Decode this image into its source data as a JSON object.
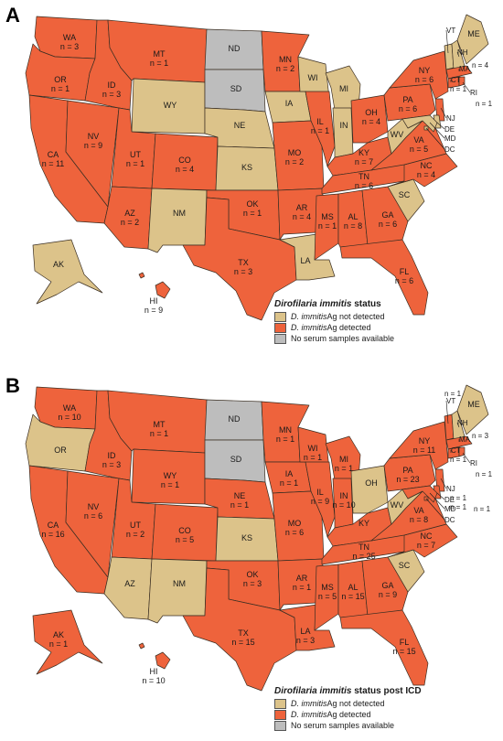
{
  "colors": {
    "not_detected": "#dcc38a",
    "detected": "#ee633c",
    "no_samples": "#bdbdbd"
  },
  "panels": [
    {
      "letter": "A",
      "legend": {
        "title_italic": "Dirofilaria immitis",
        "title_rest": " status",
        "items": [
          {
            "italic": "D. immitis",
            "rest": " Ag not detected",
            "status": "not_detected"
          },
          {
            "italic": "D. immitis",
            "rest": " Ag detected",
            "status": "detected"
          },
          {
            "italic": "",
            "rest": "No serum samples available",
            "status": "no_samples"
          }
        ]
      },
      "states": {
        "WA": {
          "s": "detected",
          "n": "n = 3"
        },
        "OR": {
          "s": "detected",
          "n": "n = 1"
        },
        "CA": {
          "s": "detected",
          "n": "n = 11"
        },
        "NV": {
          "s": "detected",
          "n": "n = 9"
        },
        "ID": {
          "s": "detected",
          "n": "n = 3"
        },
        "MT": {
          "s": "detected",
          "n": "n = 1"
        },
        "WY": {
          "s": "not_detected",
          "n": ""
        },
        "UT": {
          "s": "detected",
          "n": "n = 1"
        },
        "AZ": {
          "s": "detected",
          "n": "n = 2"
        },
        "CO": {
          "s": "detected",
          "n": "n = 4"
        },
        "NM": {
          "s": "not_detected",
          "n": ""
        },
        "ND": {
          "s": "no_samples",
          "n": ""
        },
        "SD": {
          "s": "no_samples",
          "n": ""
        },
        "NE": {
          "s": "not_detected",
          "n": ""
        },
        "KS": {
          "s": "not_detected",
          "n": ""
        },
        "OK": {
          "s": "detected",
          "n": "n = 1"
        },
        "TX": {
          "s": "detected",
          "n": "n = 3"
        },
        "MN": {
          "s": "detected",
          "n": "n = 2"
        },
        "IA": {
          "s": "not_detected",
          "n": ""
        },
        "MO": {
          "s": "detected",
          "n": "n = 2"
        },
        "AR": {
          "s": "detected",
          "n": "n = 4"
        },
        "LA": {
          "s": "not_detected",
          "n": ""
        },
        "WI": {
          "s": "not_detected",
          "n": ""
        },
        "IL": {
          "s": "detected",
          "n": "n = 1"
        },
        "MI": {
          "s": "not_detected",
          "n": ""
        },
        "IN": {
          "s": "not_detected",
          "n": ""
        },
        "OH": {
          "s": "detected",
          "n": "n = 4"
        },
        "KY": {
          "s": "detected",
          "n": "n = 7"
        },
        "TN": {
          "s": "detected",
          "n": "n = 6"
        },
        "MS": {
          "s": "detected",
          "n": "n = 1"
        },
        "AL": {
          "s": "detected",
          "n": "n = 8"
        },
        "GA": {
          "s": "detected",
          "n": "n = 6"
        },
        "FL": {
          "s": "detected",
          "n": "n = 6"
        },
        "SC": {
          "s": "not_detected",
          "n": ""
        },
        "NC": {
          "s": "detected",
          "n": "n = 4"
        },
        "VA": {
          "s": "detected",
          "n": "n = 5"
        },
        "WV": {
          "s": "not_detected",
          "n": ""
        },
        "PA": {
          "s": "detected",
          "n": "n = 6"
        },
        "NY": {
          "s": "detected",
          "n": "n = 6"
        },
        "ME": {
          "s": "not_detected",
          "n": ""
        },
        "VT": {
          "s": "not_detected",
          "n": ""
        },
        "NH": {
          "s": "not_detected",
          "n": ""
        },
        "MA": {
          "s": "detected",
          "n": "n = 4"
        },
        "CT": {
          "s": "detected",
          "n": "n = 1"
        },
        "RI": {
          "s": "detected",
          "n": "n = 1"
        },
        "NJ": {
          "s": "detected",
          "n": ""
        },
        "DE": {
          "s": "not_detected",
          "n": ""
        },
        "MD": {
          "s": "not_detected",
          "n": ""
        },
        "DC": {
          "s": "not_detected",
          "n": ""
        },
        "AK": {
          "s": "not_detected",
          "n": ""
        },
        "HI": {
          "s": "detected",
          "n": "n = 9"
        }
      }
    },
    {
      "letter": "B",
      "legend": {
        "title_italic": "Dirofilaria immitis",
        "title_rest": " status post ICD",
        "items": [
          {
            "italic": "D. immitis",
            "rest": " Ag not detected",
            "status": "not_detected"
          },
          {
            "italic": "D. immitis",
            "rest": " Ag detected",
            "status": "detected"
          },
          {
            "italic": "",
            "rest": "No serum samples available",
            "status": "no_samples"
          }
        ]
      },
      "states": {
        "WA": {
          "s": "detected",
          "n": "n = 10"
        },
        "OR": {
          "s": "not_detected",
          "n": ""
        },
        "CA": {
          "s": "detected",
          "n": "n = 16"
        },
        "NV": {
          "s": "detected",
          "n": "n = 6"
        },
        "ID": {
          "s": "detected",
          "n": "n = 3"
        },
        "MT": {
          "s": "detected",
          "n": "n = 1"
        },
        "WY": {
          "s": "detected",
          "n": "n = 1"
        },
        "UT": {
          "s": "detected",
          "n": "n = 2"
        },
        "AZ": {
          "s": "not_detected",
          "n": ""
        },
        "CO": {
          "s": "detected",
          "n": "n = 5"
        },
        "NM": {
          "s": "not_detected",
          "n": ""
        },
        "ND": {
          "s": "no_samples",
          "n": ""
        },
        "SD": {
          "s": "no_samples",
          "n": ""
        },
        "NE": {
          "s": "detected",
          "n": "n = 1"
        },
        "KS": {
          "s": "not_detected",
          "n": ""
        },
        "OK": {
          "s": "detected",
          "n": "n = 3"
        },
        "TX": {
          "s": "detected",
          "n": "n = 15"
        },
        "MN": {
          "s": "detected",
          "n": "n = 1"
        },
        "IA": {
          "s": "detected",
          "n": "n = 1"
        },
        "MO": {
          "s": "detected",
          "n": "n = 6"
        },
        "AR": {
          "s": "detected",
          "n": "n = 1"
        },
        "LA": {
          "s": "detected",
          "n": "n = 3"
        },
        "WI": {
          "s": "detected",
          "n": "n = 1"
        },
        "IL": {
          "s": "detected",
          "n": "n = 9"
        },
        "MI": {
          "s": "detected",
          "n": "n = 1"
        },
        "IN": {
          "s": "detected",
          "n": "n = 10"
        },
        "OH": {
          "s": "not_detected",
          "n": ""
        },
        "KY": {
          "s": "detected",
          "n": ""
        },
        "TN": {
          "s": "detected",
          "n": "n = 25"
        },
        "MS": {
          "s": "detected",
          "n": "n = 5"
        },
        "AL": {
          "s": "detected",
          "n": "n = 15"
        },
        "GA": {
          "s": "detected",
          "n": "n = 9"
        },
        "FL": {
          "s": "detected",
          "n": "n = 15"
        },
        "SC": {
          "s": "not_detected",
          "n": ""
        },
        "NC": {
          "s": "detected",
          "n": "n = 7"
        },
        "VA": {
          "s": "detected",
          "n": "n = 8"
        },
        "WV": {
          "s": "not_detected",
          "n": ""
        },
        "PA": {
          "s": "detected",
          "n": "n = 23"
        },
        "NY": {
          "s": "detected",
          "n": "n = 11"
        },
        "ME": {
          "s": "not_detected",
          "n": ""
        },
        "VT": {
          "s": "detected",
          "n": "n = 1"
        },
        "NH": {
          "s": "not_detected",
          "n": ""
        },
        "MA": {
          "s": "detected",
          "n": "n = 3"
        },
        "CT": {
          "s": "detected",
          "n": "n = 1"
        },
        "RI": {
          "s": "detected",
          "n": "n = 1"
        },
        "NJ": {
          "s": "detected",
          "n": "n = 1"
        },
        "DE": {
          "s": "detected",
          "n": "n = 1"
        },
        "MD": {
          "s": "detected",
          "n": "n = 1"
        },
        "DC": {
          "s": "detected",
          "n": ""
        },
        "AK": {
          "s": "detected",
          "n": "n = 1"
        },
        "HI": {
          "s": "detected",
          "n": "n = 10"
        }
      }
    }
  ]
}
